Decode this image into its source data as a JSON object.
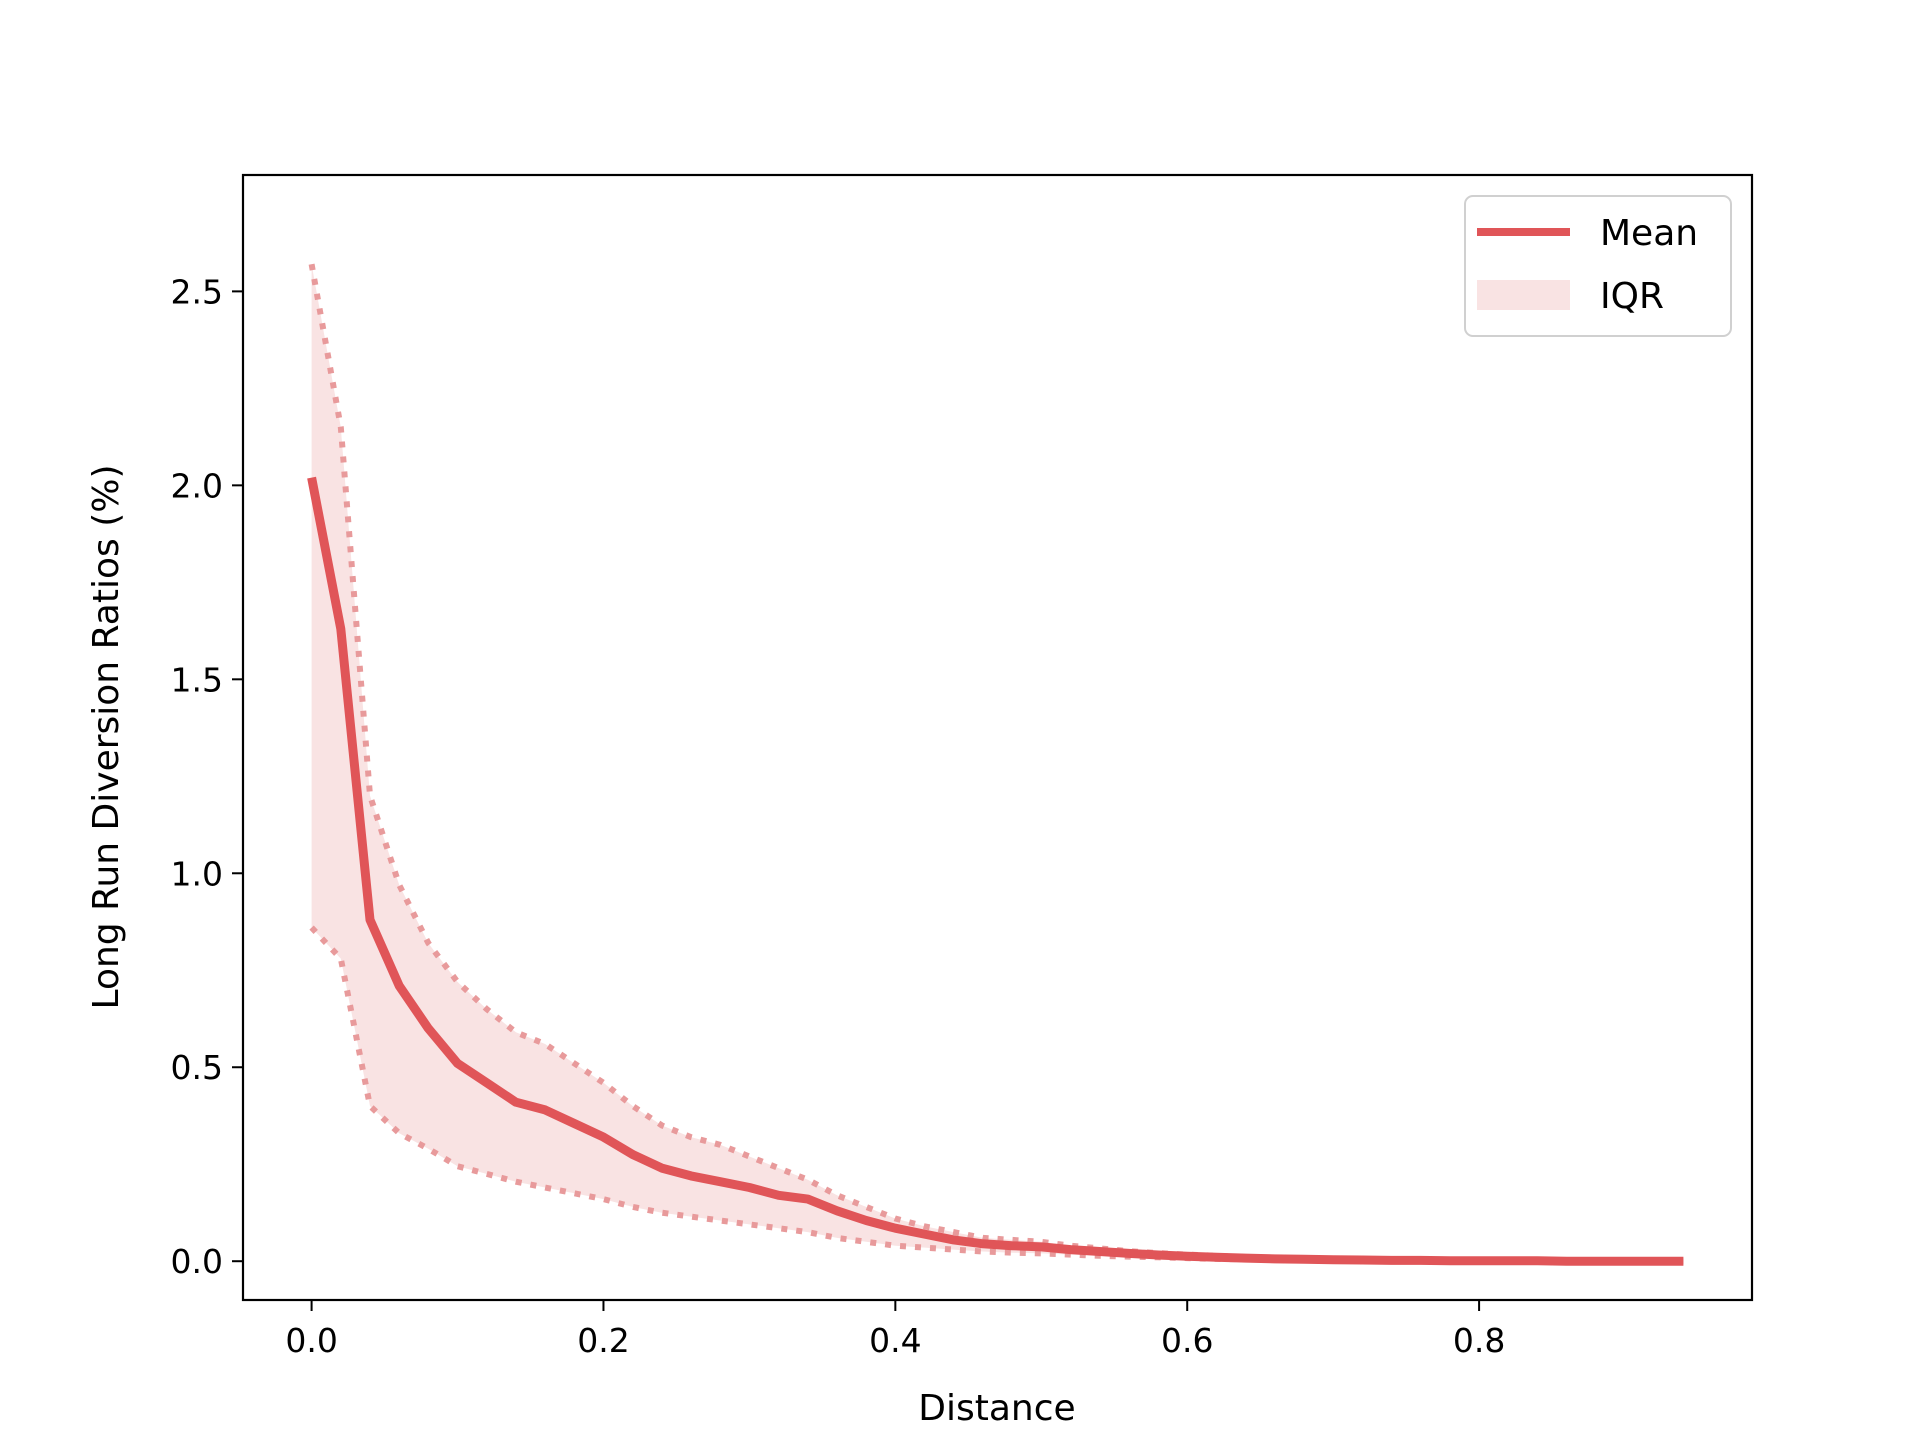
{
  "chart_data": {
    "type": "line",
    "title": "",
    "xlabel": "Distance",
    "ylabel": "Long Run Diversion Ratios (%)",
    "xlim": [
      -0.047,
      0.987
    ],
    "ylim": [
      -0.1,
      2.8
    ],
    "xticks": [
      "0.0",
      "0.2",
      "0.4",
      "0.6",
      "0.8"
    ],
    "xtick_values": [
      0.0,
      0.2,
      0.4,
      0.6,
      0.8
    ],
    "yticks": [
      "0.0",
      "0.5",
      "1.0",
      "1.5",
      "2.0",
      "2.5"
    ],
    "ytick_values": [
      0.0,
      0.5,
      1.0,
      1.5,
      2.0,
      2.5
    ],
    "grid": false,
    "legend_position": "top-right",
    "colors": {
      "mean": "#e05558",
      "iqr_fill": "#f9e3e3",
      "iqr_edge": "#e89a9b"
    },
    "x": [
      0.0,
      0.02,
      0.04,
      0.06,
      0.08,
      0.1,
      0.12,
      0.14,
      0.16,
      0.18,
      0.2,
      0.22,
      0.24,
      0.26,
      0.28,
      0.3,
      0.32,
      0.34,
      0.36,
      0.38,
      0.4,
      0.42,
      0.44,
      0.46,
      0.48,
      0.5,
      0.52,
      0.54,
      0.56,
      0.58,
      0.6,
      0.62,
      0.64,
      0.66,
      0.68,
      0.7,
      0.72,
      0.74,
      0.76,
      0.78,
      0.8,
      0.82,
      0.84,
      0.86,
      0.88,
      0.9,
      0.92,
      0.94
    ],
    "series": [
      {
        "name": "Mean",
        "values": [
          2.02,
          1.63,
          0.88,
          0.71,
          0.6,
          0.51,
          0.46,
          0.41,
          0.39,
          0.355,
          0.32,
          0.275,
          0.24,
          0.22,
          0.205,
          0.19,
          0.17,
          0.16,
          0.13,
          0.105,
          0.085,
          0.07,
          0.055,
          0.045,
          0.04,
          0.037,
          0.03,
          0.025,
          0.02,
          0.016,
          0.013,
          0.01,
          0.008,
          0.006,
          0.005,
          0.004,
          0.003,
          0.002,
          0.002,
          0.001,
          0.001,
          0.001,
          0.001,
          0.0,
          0.0,
          0.0,
          0.0,
          0.0
        ]
      },
      {
        "name": "IQR",
        "lower": [
          0.86,
          0.78,
          0.4,
          0.33,
          0.29,
          0.245,
          0.225,
          0.205,
          0.19,
          0.175,
          0.16,
          0.14,
          0.125,
          0.115,
          0.105,
          0.095,
          0.085,
          0.075,
          0.06,
          0.05,
          0.04,
          0.035,
          0.03,
          0.025,
          0.022,
          0.02,
          0.017,
          0.014,
          0.012,
          0.01,
          0.008,
          0.006,
          0.005,
          0.004,
          0.003,
          0.002,
          0.002,
          0.001,
          0.001,
          0.001,
          0.0,
          0.0,
          0.0,
          0.0,
          0.0,
          0.0,
          0.0,
          0.0
        ],
        "upper": [
          2.57,
          2.15,
          1.2,
          0.97,
          0.82,
          0.72,
          0.65,
          0.59,
          0.56,
          0.51,
          0.46,
          0.4,
          0.35,
          0.32,
          0.3,
          0.27,
          0.24,
          0.21,
          0.17,
          0.14,
          0.11,
          0.09,
          0.075,
          0.06,
          0.055,
          0.05,
          0.04,
          0.033,
          0.026,
          0.021,
          0.017,
          0.014,
          0.011,
          0.009,
          0.007,
          0.006,
          0.005,
          0.004,
          0.003,
          0.003,
          0.002,
          0.002,
          0.002,
          0.001,
          0.001,
          0.001,
          0.001,
          0.001
        ]
      }
    ]
  }
}
